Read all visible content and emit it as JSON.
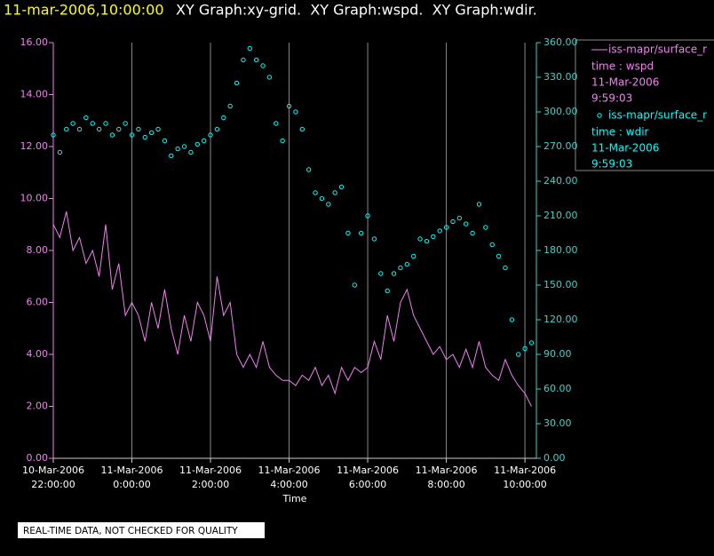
{
  "chart_data": {
    "type": "line",
    "timestamp": "11-mar-2006,10:00:00",
    "title": "XY Graph:xy-grid.  XY Graph:wspd.  XY Graph:wdir.",
    "xlabel": "Time",
    "note": "REAL-TIME DATA, NOT CHECKED FOR QUALITY",
    "grid": true,
    "xlim": [
      "2006-03-10 22:00:00",
      "2006-03-11 10:17:30"
    ],
    "xticks": [
      {
        "value": "2006-03-10 22:00:00",
        "label": [
          "10-Mar-2006",
          "22:00:00"
        ]
      },
      {
        "value": "2006-03-11 00:00:00",
        "label": [
          "11-Mar-2006",
          "0:00:00"
        ]
      },
      {
        "value": "2006-03-11 02:00:00",
        "label": [
          "11-Mar-2006",
          "2:00:00"
        ]
      },
      {
        "value": "2006-03-11 04:00:00",
        "label": [
          "11-Mar-2006",
          "4:00:00"
        ]
      },
      {
        "value": "2006-03-11 06:00:00",
        "label": [
          "11-Mar-2006",
          "6:00:00"
        ]
      },
      {
        "value": "2006-03-11 08:00:00",
        "label": [
          "11-Mar-2006",
          "8:00:00"
        ]
      },
      {
        "value": "2006-03-11 10:00:00",
        "label": [
          "11-Mar-2006",
          "10:00:00"
        ]
      }
    ],
    "ylim": [
      0,
      16
    ],
    "yticks": [
      {
        "value": 0,
        "label": "0.00"
      },
      {
        "value": 2,
        "label": "2.00"
      },
      {
        "value": 4,
        "label": "4.00"
      },
      {
        "value": 6,
        "label": "6.00"
      },
      {
        "value": 8,
        "label": "8.00"
      },
      {
        "value": 10,
        "label": "10.00"
      },
      {
        "value": 12,
        "label": "12.00"
      },
      {
        "value": 14,
        "label": "14.00"
      },
      {
        "value": 16,
        "label": "16.00"
      }
    ],
    "y2lim": [
      0,
      360
    ],
    "y2ticks": [
      {
        "value": 0,
        "label": "0.00"
      },
      {
        "value": 30,
        "label": "30.00"
      },
      {
        "value": 60,
        "label": "60.00"
      },
      {
        "value": 90,
        "label": "90.00"
      },
      {
        "value": 120,
        "label": "120.00"
      },
      {
        "value": 150,
        "label": "150.00"
      },
      {
        "value": 180,
        "label": "180.00"
      },
      {
        "value": 210,
        "label": "210.00"
      },
      {
        "value": 240,
        "label": "240.00"
      },
      {
        "value": 270,
        "label": "270.00"
      },
      {
        "value": 300,
        "label": "300.00"
      },
      {
        "value": 330,
        "label": "330.00"
      },
      {
        "value": 360,
        "label": "360.00"
      }
    ],
    "x": [
      "2006-03-10 22:00:00",
      "2006-03-10 22:10:00",
      "2006-03-10 22:20:00",
      "2006-03-10 22:30:00",
      "2006-03-10 22:40:00",
      "2006-03-10 22:50:00",
      "2006-03-10 23:00:00",
      "2006-03-10 23:10:00",
      "2006-03-10 23:20:00",
      "2006-03-10 23:30:00",
      "2006-03-10 23:40:00",
      "2006-03-10 23:50:00",
      "2006-03-11 00:00:00",
      "2006-03-11 00:10:00",
      "2006-03-11 00:20:00",
      "2006-03-11 00:30:00",
      "2006-03-11 00:40:00",
      "2006-03-11 00:50:00",
      "2006-03-11 01:00:00",
      "2006-03-11 01:10:00",
      "2006-03-11 01:20:00",
      "2006-03-11 01:30:00",
      "2006-03-11 01:40:00",
      "2006-03-11 01:50:00",
      "2006-03-11 02:00:00",
      "2006-03-11 02:10:00",
      "2006-03-11 02:20:00",
      "2006-03-11 02:30:00",
      "2006-03-11 02:40:00",
      "2006-03-11 02:50:00",
      "2006-03-11 03:00:00",
      "2006-03-11 03:10:00",
      "2006-03-11 03:20:00",
      "2006-03-11 03:30:00",
      "2006-03-11 03:40:00",
      "2006-03-11 03:50:00",
      "2006-03-11 04:00:00",
      "2006-03-11 04:10:00",
      "2006-03-11 04:20:00",
      "2006-03-11 04:30:00",
      "2006-03-11 04:40:00",
      "2006-03-11 04:50:00",
      "2006-03-11 05:00:00",
      "2006-03-11 05:10:00",
      "2006-03-11 05:20:00",
      "2006-03-11 05:30:00",
      "2006-03-11 05:40:00",
      "2006-03-11 05:50:00",
      "2006-03-11 06:00:00",
      "2006-03-11 06:10:00",
      "2006-03-11 06:20:00",
      "2006-03-11 06:30:00",
      "2006-03-11 06:40:00",
      "2006-03-11 06:50:00",
      "2006-03-11 07:00:00",
      "2006-03-11 07:10:00",
      "2006-03-11 07:20:00",
      "2006-03-11 07:30:00",
      "2006-03-11 07:40:00",
      "2006-03-11 07:50:00",
      "2006-03-11 08:00:00",
      "2006-03-11 08:10:00",
      "2006-03-11 08:20:00",
      "2006-03-11 08:30:00",
      "2006-03-11 08:40:00",
      "2006-03-11 08:50:00",
      "2006-03-11 09:00:00",
      "2006-03-11 09:10:00",
      "2006-03-11 09:20:00",
      "2006-03-11 09:30:00",
      "2006-03-11 09:40:00",
      "2006-03-11 09:50:00",
      "2006-03-11 10:00:00",
      "2006-03-11 10:10:00"
    ],
    "series": [
      {
        "name": "iss-mapr/surface_r",
        "type": "line",
        "color": "#ee82ee",
        "label_lines": [
          "time : wspd",
          "11-Mar-2006",
          "9:59:03"
        ],
        "values": [
          9,
          8.5,
          9.5,
          8,
          8.5,
          7.5,
          8,
          7,
          9,
          6.5,
          7.5,
          5.5,
          6,
          5.5,
          4.5,
          6,
          5,
          6.5,
          5,
          4,
          5.5,
          4.5,
          6,
          5.5,
          4.5,
          7,
          5.5,
          6,
          4,
          3.5,
          4,
          3.5,
          4.5,
          3.5,
          3.2,
          3,
          3,
          2.8,
          3.2,
          3,
          3.5,
          2.8,
          3.2,
          2.5,
          3.5,
          3,
          3.5,
          3.3,
          3.5,
          4.5,
          3.8,
          5.5,
          4.5,
          6,
          6.5,
          5.5,
          5,
          4.5,
          4,
          4.3,
          3.8,
          4,
          3.5,
          4.2,
          3.5,
          4.5,
          3.5,
          3.2,
          3,
          3.8,
          3.2,
          2.8,
          2.5,
          2
        ]
      },
      {
        "name": "iss-mapr/surface_r",
        "type": "scatter",
        "axis": "y2",
        "color": "#00ffff",
        "label_lines": [
          "time : wdir",
          "11-Mar-2006",
          "9:59:03"
        ],
        "values": [
          280,
          265,
          285,
          290,
          285,
          295,
          290,
          285,
          290,
          280,
          285,
          290,
          280,
          285,
          278,
          282,
          285,
          275,
          262,
          268,
          270,
          265,
          272,
          275,
          280,
          285,
          295,
          305,
          325,
          345,
          355,
          345,
          340,
          330,
          290,
          275,
          305,
          300,
          285,
          250,
          230,
          225,
          220,
          230,
          235,
          195,
          150,
          195,
          210,
          190,
          160,
          145,
          160,
          165,
          168,
          175,
          190,
          188,
          192,
          197,
          200,
          205,
          208,
          203,
          195,
          220,
          200,
          185,
          175,
          165,
          120,
          90,
          95,
          100
        ]
      }
    ]
  }
}
